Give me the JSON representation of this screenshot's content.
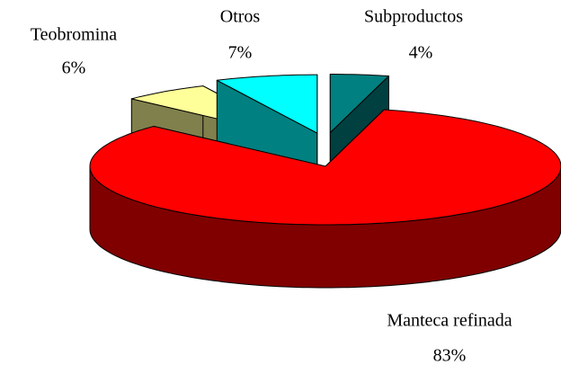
{
  "chart_data": {
    "type": "pie3d",
    "categories": [
      "Subproductos",
      "Manteca refinada",
      "Teobromina",
      "Otros"
    ],
    "values": [
      4,
      83,
      6,
      7
    ],
    "value_labels": [
      "4%",
      "83%",
      "6%",
      "7%"
    ],
    "colors": [
      "#008080",
      "#ff0000",
      "#ffff99",
      "#00ffff"
    ],
    "exploded": [
      true,
      false,
      true,
      true
    ]
  }
}
